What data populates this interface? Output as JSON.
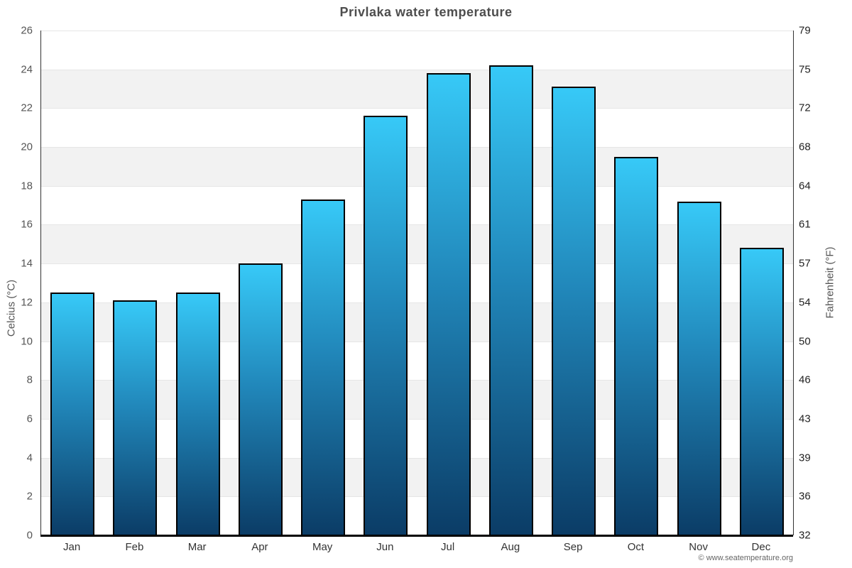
{
  "page": {
    "title": "Privlaka water temperature",
    "copyright": "© www.seatemperature.org"
  },
  "chart_data": {
    "type": "bar",
    "title": "Privlaka water temperature",
    "categories": [
      "Jan",
      "Feb",
      "Mar",
      "Apr",
      "May",
      "Jun",
      "Jul",
      "Aug",
      "Sep",
      "Oct",
      "Nov",
      "Dec"
    ],
    "values": [
      12.5,
      12.1,
      12.5,
      14.0,
      17.3,
      21.6,
      23.8,
      24.2,
      23.1,
      19.5,
      17.2,
      14.8
    ],
    "xlabel": "",
    "ylabel_left": "Celcius (°C)",
    "ylabel_right": "Fahrenheit (°F)",
    "ylim": [
      0,
      26
    ],
    "yticks_celsius": [
      0,
      2,
      4,
      6,
      8,
      10,
      12,
      14,
      16,
      18,
      20,
      22,
      24,
      26
    ],
    "yticks_fahrenheit": [
      "32",
      "36",
      "39",
      "43",
      "46",
      "50",
      "54",
      "57",
      "61",
      "64",
      "68",
      "72",
      "75",
      "79"
    ],
    "grid": true,
    "legend": false,
    "colors": {
      "bar_gradient_top": "#37c9f7",
      "bar_gradient_mid": "#2187ba",
      "bar_gradient_bottom": "#0b3c66",
      "bar_border": "#000000",
      "band": "#f2f2f2",
      "gridline": "#e6e6e6",
      "axis_line": "#333333",
      "bottom_axis": "#010101",
      "title": "#4d4d4d",
      "tick_left": "#555555",
      "tick_right": "#222222",
      "month": "#333333",
      "copyright": "#666666"
    }
  }
}
